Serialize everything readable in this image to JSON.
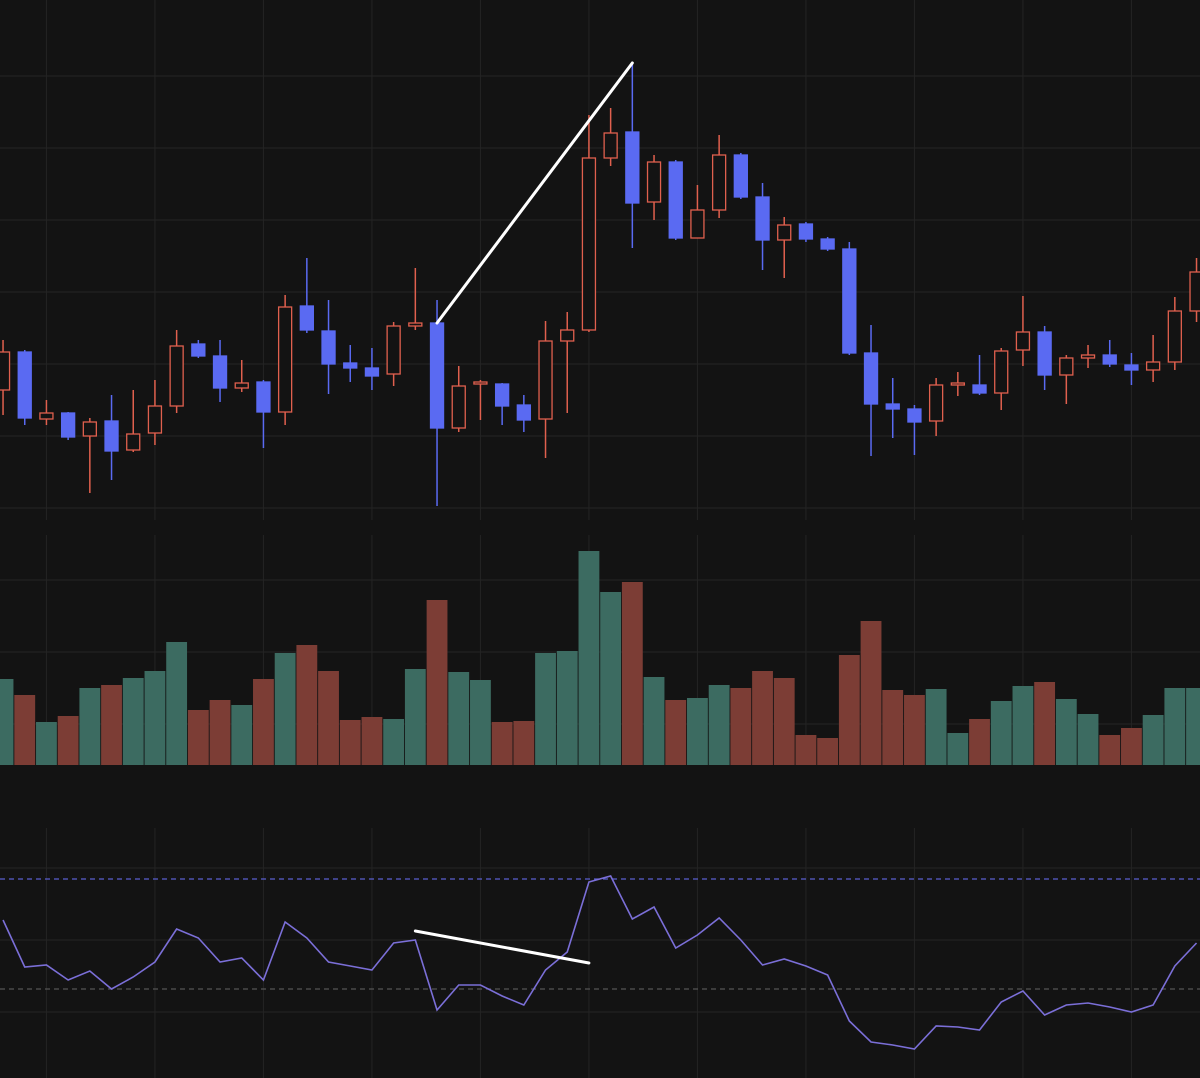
{
  "chart_data": [
    {
      "type": "candlestick",
      "x": [
        0,
        1,
        2,
        3,
        4,
        5,
        6,
        7,
        8,
        9,
        10,
        11,
        12,
        13,
        14,
        15,
        16,
        17,
        18,
        19,
        20,
        21,
        22,
        23,
        24,
        25,
        26,
        27,
        28,
        29,
        30,
        31,
        32,
        33,
        34,
        35,
        36,
        37,
        38,
        39,
        40,
        41,
        42,
        43,
        44,
        45,
        46,
        47,
        48,
        49,
        50,
        51,
        52,
        53,
        54,
        55
      ],
      "open": [
        130,
        168,
        101,
        107,
        84,
        99,
        70,
        87,
        114,
        176,
        164,
        132,
        138,
        108,
        214,
        189,
        157,
        152,
        146,
        194,
        197,
        92,
        136,
        136,
        115,
        101,
        179,
        190,
        362,
        388,
        318,
        358,
        282,
        310,
        365,
        323,
        280,
        296,
        281,
        271,
        167,
        116,
        111,
        99,
        135,
        135,
        127,
        170,
        188,
        145,
        162,
        165,
        155,
        150,
        158,
        209
      ],
      "high": [
        180,
        170,
        120,
        108,
        102,
        125,
        130,
        140,
        190,
        180,
        180,
        160,
        140,
        225,
        262,
        220,
        175,
        172,
        198,
        252,
        220,
        154,
        140,
        137,
        125,
        199,
        208,
        405,
        412,
        457,
        365,
        360,
        335,
        385,
        367,
        337,
        303,
        298,
        283,
        278,
        195,
        142,
        115,
        142,
        148,
        165,
        172,
        224,
        194,
        165,
        175,
        180,
        167,
        185,
        223,
        262
      ],
      "low": [
        105,
        95,
        95,
        80,
        27,
        40,
        68,
        75,
        107,
        162,
        118,
        128,
        72,
        95,
        187,
        126,
        138,
        130,
        134,
        190,
        14,
        88,
        100,
        95,
        88,
        62,
        107,
        188,
        354,
        272,
        300,
        280,
        282,
        302,
        321,
        250,
        242,
        278,
        269,
        165,
        64,
        82,
        65,
        84,
        124,
        125,
        110,
        154,
        130,
        116,
        152,
        153,
        135,
        138,
        150,
        198
      ],
      "close": [
        168,
        102,
        107,
        83,
        98,
        69,
        86,
        114,
        174,
        164,
        132,
        137,
        108,
        213,
        190,
        156,
        152,
        144,
        194,
        197,
        92,
        134,
        138,
        114,
        100,
        179,
        190,
        362,
        387,
        317,
        358,
        282,
        310,
        365,
        323,
        280,
        295,
        281,
        271,
        167,
        116,
        111,
        98,
        135,
        137,
        127,
        169,
        188,
        145,
        162,
        165,
        156,
        150,
        158,
        209,
        248
      ],
      "up_color": "#e0604e",
      "down_color": "#5a6af2",
      "xlim": [
        -0.14,
        55.16
      ],
      "ylim": [
        0,
        520
      ],
      "xticks": [
        2,
        7,
        12,
        17,
        22,
        27,
        32,
        37,
        42,
        47,
        52
      ],
      "yticks": [
        12,
        84,
        156,
        228,
        300,
        372,
        444
      ],
      "grid": true,
      "grid_color": "#242424",
      "annotations": [
        {
          "x": [
            20,
            29
          ],
          "y": [
            197,
            457
          ],
          "color": "#ffffff"
        }
      ]
    },
    {
      "type": "bar",
      "x": [
        0,
        1,
        2,
        3,
        4,
        5,
        6,
        7,
        8,
        9,
        10,
        11,
        12,
        13,
        14,
        15,
        16,
        17,
        18,
        19,
        20,
        21,
        22,
        23,
        24,
        25,
        26,
        27,
        28,
        29,
        30,
        31,
        32,
        33,
        34,
        35,
        36,
        37,
        38,
        39,
        40,
        41,
        42,
        43,
        44,
        45,
        46,
        47,
        48,
        49,
        50,
        51,
        52,
        53,
        54,
        55
      ],
      "values": [
        86,
        70,
        43,
        49,
        77,
        80,
        87,
        94,
        123,
        55,
        65,
        60,
        86,
        112,
        120,
        94,
        45,
        48,
        46,
        96,
        165,
        93,
        85,
        43,
        44,
        112,
        114,
        214,
        173,
        183,
        88,
        65,
        67,
        80,
        77,
        94,
        87,
        30,
        27,
        110,
        144,
        75,
        70,
        76,
        32,
        46,
        64,
        79,
        83,
        66,
        51,
        30,
        37,
        50,
        77,
        77
      ],
      "colors": [
        "#3c6b61",
        "#7c3d35",
        "#3c6b61",
        "#7c3d35",
        "#3c6b61",
        "#7c3d35",
        "#3c6b61",
        "#3c6b61",
        "#3c6b61",
        "#7c3d35",
        "#7c3d35",
        "#3c6b61",
        "#7c3d35",
        "#3c6b61",
        "#7c3d35",
        "#7c3d35",
        "#7c3d35",
        "#7c3d35",
        "#3c6b61",
        "#3c6b61",
        "#7c3d35",
        "#3c6b61",
        "#3c6b61",
        "#7c3d35",
        "#7c3d35",
        "#3c6b61",
        "#3c6b61",
        "#3c6b61",
        "#3c6b61",
        "#7c3d35",
        "#3c6b61",
        "#7c3d35",
        "#3c6b61",
        "#3c6b61",
        "#7c3d35",
        "#7c3d35",
        "#7c3d35",
        "#7c3d35",
        "#7c3d35",
        "#7c3d35",
        "#7c3d35",
        "#7c3d35",
        "#7c3d35",
        "#3c6b61",
        "#3c6b61",
        "#7c3d35",
        "#3c6b61",
        "#3c6b61",
        "#7c3d35",
        "#3c6b61",
        "#3c6b61",
        "#7c3d35",
        "#7c3d35",
        "#3c6b61",
        "#3c6b61",
        "#3c6b61"
      ],
      "xlim": [
        -0.14,
        55.16
      ],
      "ylim": [
        0,
        230
      ],
      "xticks": [
        2,
        7,
        12,
        17,
        22,
        27,
        32,
        37,
        42,
        47,
        52
      ],
      "yticks": [
        41,
        113,
        185
      ],
      "grid": true,
      "grid_color": "#242424"
    },
    {
      "type": "line",
      "x": [
        0,
        1,
        2,
        3,
        4,
        5,
        6,
        7,
        8,
        9,
        10,
        11,
        12,
        13,
        14,
        15,
        16,
        17,
        18,
        19,
        20,
        21,
        22,
        23,
        24,
        25,
        26,
        27,
        28,
        29,
        30,
        31,
        32,
        33,
        34,
        35,
        36,
        37,
        38,
        39,
        40,
        41,
        42,
        43,
        44,
        45,
        46,
        47,
        48,
        49,
        50,
        51,
        52,
        53,
        54,
        55
      ],
      "values": [
        158,
        111,
        113,
        98,
        107,
        89,
        101,
        116,
        149,
        140,
        116,
        120,
        98,
        156,
        140,
        116,
        112,
        108,
        135,
        138,
        68,
        93,
        93,
        82,
        73,
        108,
        126,
        196,
        202,
        159,
        171,
        130,
        143,
        160,
        138,
        113,
        119,
        112,
        103,
        57,
        36,
        33,
        29,
        52,
        51,
        48,
        76,
        87,
        63,
        73,
        75,
        71,
        66,
        73,
        112,
        135
      ],
      "color": "#7b6fd8",
      "xlim": [
        -0.14,
        55.16
      ],
      "ylim": [
        0,
        250
      ],
      "xticks": [
        2,
        7,
        12,
        17,
        22,
        27,
        32,
        37,
        42,
        47,
        52
      ],
      "yticks": [
        66,
        138,
        210
      ],
      "grid": true,
      "grid_color": "#242424",
      "levels": [
        {
          "value": 199,
          "color": "#5a5fd0"
        },
        {
          "value": 89,
          "color": "#555555"
        }
      ],
      "annotations": [
        {
          "x": [
            19,
            27
          ],
          "y": [
            147,
            115
          ],
          "color": "#ffffff"
        }
      ]
    }
  ]
}
